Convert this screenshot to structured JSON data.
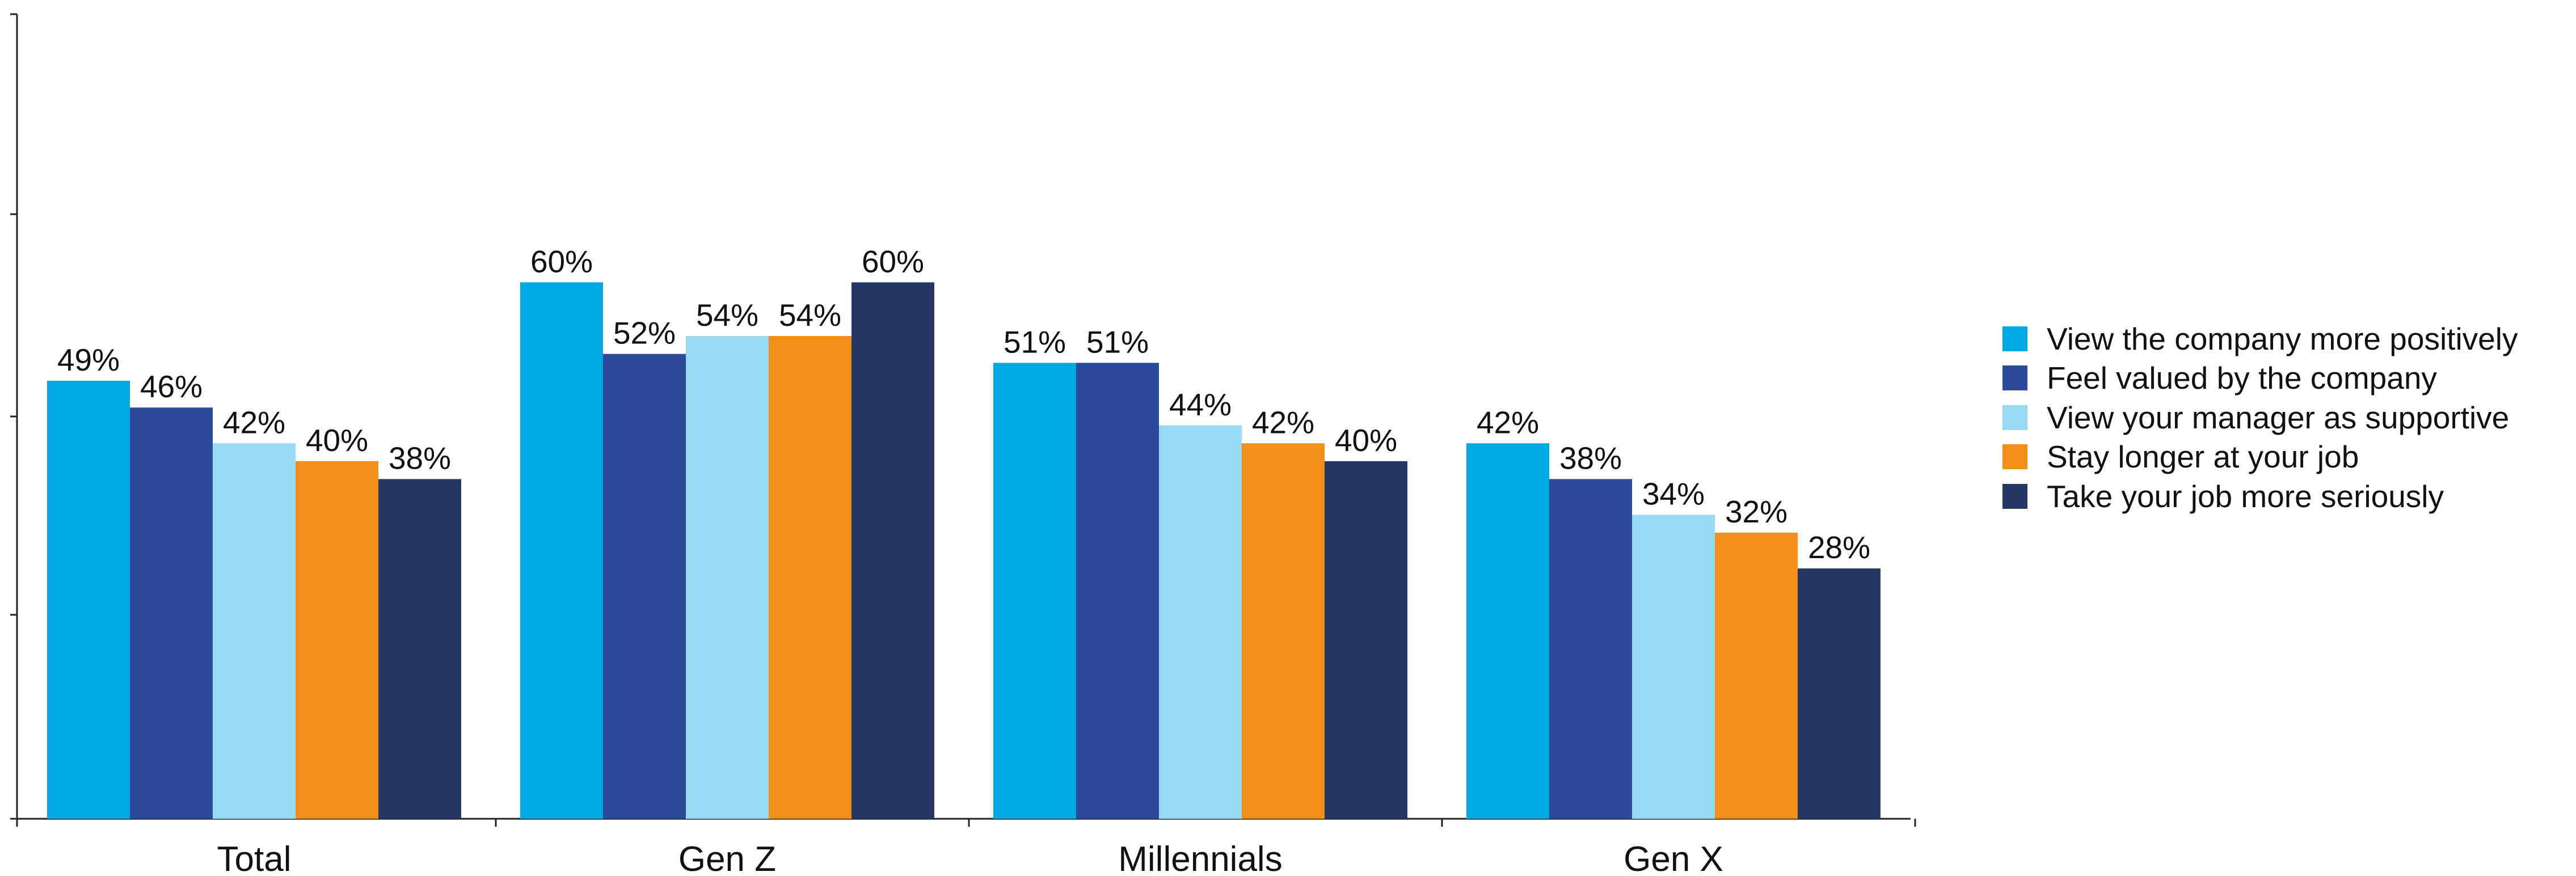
{
  "chart_data": {
    "type": "bar",
    "categories": [
      "Total",
      "Gen Z",
      "Millennials",
      "Gen X"
    ],
    "series": [
      {
        "name": "View the company more positively",
        "values": [
          49,
          60,
          51,
          42
        ],
        "labels": [
          "49%",
          "60%",
          "51%",
          "42%"
        ],
        "color": "#00a8e3"
      },
      {
        "name": "Feel valued by the company",
        "values": [
          46,
          52,
          51,
          38
        ],
        "labels": [
          "46%",
          "52%",
          "51%",
          "38%"
        ],
        "color": "#2c4a9c"
      },
      {
        "name": "View your manager as supportive",
        "values": [
          42,
          54,
          44,
          34
        ],
        "labels": [
          "42%",
          "54%",
          "44%",
          "34%"
        ],
        "color": "#98d9f4"
      },
      {
        "name": "Stay longer at your job",
        "values": [
          40,
          54,
          42,
          32
        ],
        "labels": [
          "40%",
          "54%",
          "42%",
          "32%"
        ],
        "color": "#f28f1b"
      },
      {
        "name": "Take your job more seriously",
        "values": [
          38,
          60,
          40,
          28
        ],
        "labels": [
          "38%",
          "60%",
          "40%",
          "28%"
        ],
        "color": "#263665"
      }
    ],
    "title": "",
    "xlabel": "",
    "ylabel": "",
    "ylim": [
      0,
      90
    ],
    "y_tick_labels": "none",
    "grid": false,
    "legend_position": "right"
  }
}
